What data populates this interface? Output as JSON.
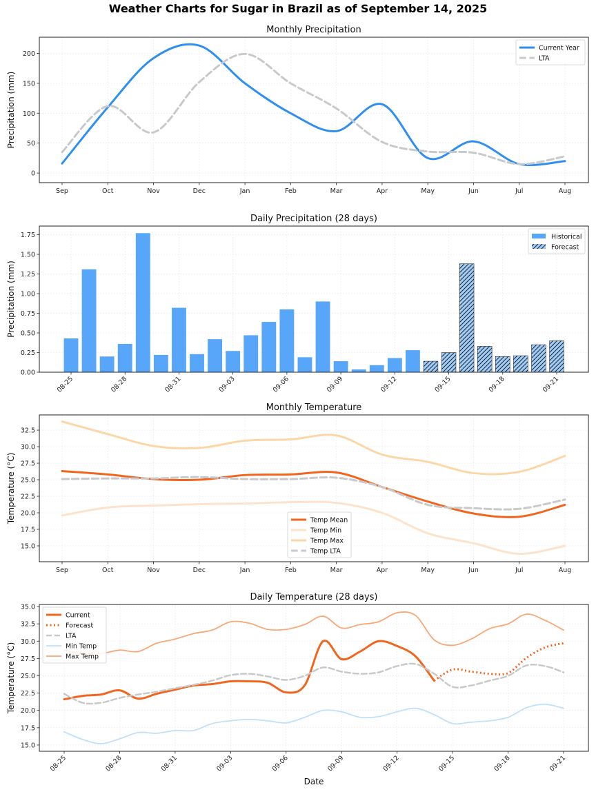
{
  "suptitle": "Weather Charts for Sugar in Brazil as of September 14, 2025",
  "chart_data": [
    {
      "type": "line",
      "title": "Monthly Precipitation",
      "xlabel": "",
      "ylabel": "Precipitation (mm)",
      "categories": [
        "Sep",
        "Oct",
        "Nov",
        "Dec",
        "Jan",
        "Feb",
        "Mar",
        "Apr",
        "May",
        "Jun",
        "Jul",
        "Aug"
      ],
      "yticks": [
        0,
        50,
        100,
        150,
        200
      ],
      "ylim": [
        -16,
        227
      ],
      "grid": true,
      "legend_position": "top-right",
      "series": [
        {
          "name": "Current Year",
          "color": "#2f8ff0",
          "style": "solid",
          "values": [
            16,
            110,
            192,
            213,
            150,
            100,
            70,
            115,
            25,
            53,
            15,
            20
          ]
        },
        {
          "name": "LTA",
          "color": "#c7c9cb",
          "style": "dashed",
          "values": [
            35,
            112,
            68,
            152,
            199,
            150,
            108,
            52,
            36,
            34,
            15,
            28
          ]
        }
      ]
    },
    {
      "type": "bar",
      "title": "Daily Precipitation (28 days)",
      "xlabel": "",
      "ylabel": "Precipitation (mm)",
      "categories": [
        "08-25",
        "08-26",
        "08-27",
        "08-28",
        "08-29",
        "08-30",
        "08-31",
        "09-01",
        "09-02",
        "09-03",
        "09-04",
        "09-05",
        "09-06",
        "09-07",
        "09-08",
        "09-09",
        "09-10",
        "09-11",
        "09-12",
        "09-13",
        "09-14",
        "09-15",
        "09-16",
        "09-17",
        "09-18",
        "09-19",
        "09-20",
        "09-21"
      ],
      "tick_labels": [
        "08-25",
        "08-28",
        "08-31",
        "09-03",
        "09-06",
        "09-09",
        "09-12",
        "09-15",
        "09-18",
        "09-21"
      ],
      "yticks": [
        0,
        0.25,
        0.5,
        0.75,
        1.0,
        1.25,
        1.5,
        1.75
      ],
      "ytick_labels": [
        "0.00",
        "0.25",
        "0.50",
        "0.75",
        "1.00",
        "1.25",
        "1.50",
        "1.75"
      ],
      "ylim": [
        0,
        1.86
      ],
      "grid": true,
      "legend_position": "top-right",
      "series": [
        {
          "name": "Historical",
          "color": "#58a6fa",
          "hatch": false,
          "values": [
            0.43,
            1.31,
            0.2,
            0.36,
            1.77,
            0.22,
            0.82,
            0.23,
            0.42,
            0.27,
            0.47,
            0.64,
            0.8,
            0.19,
            0.9,
            0.14,
            0.035,
            0.09,
            0.18,
            0.28,
            null,
            null,
            null,
            null,
            null,
            null,
            null,
            null
          ]
        },
        {
          "name": "Forecast",
          "color": "#9ecbf8",
          "hatch": true,
          "values": [
            null,
            null,
            null,
            null,
            null,
            null,
            null,
            null,
            null,
            null,
            null,
            null,
            null,
            null,
            null,
            null,
            null,
            null,
            null,
            null,
            0.14,
            0.25,
            1.38,
            0.33,
            0.2,
            0.21,
            0.35,
            0.4
          ]
        }
      ]
    },
    {
      "type": "line",
      "title": "Monthly Temperature",
      "xlabel": "",
      "ylabel": "Temperature (°C)",
      "categories": [
        "Sep",
        "Oct",
        "Nov",
        "Dec",
        "Jan",
        "Feb",
        "Mar",
        "Apr",
        "May",
        "Jun",
        "Jul",
        "Aug"
      ],
      "yticks": [
        15.0,
        17.5,
        20.0,
        22.5,
        25.0,
        27.5,
        30.0,
        32.5
      ],
      "ytick_labels": [
        "15.0",
        "17.5",
        "20.0",
        "22.5",
        "25.0",
        "27.5",
        "30.0",
        "32.5"
      ],
      "ylim": [
        12.6,
        34.8
      ],
      "grid": true,
      "legend_position": "lower-center",
      "series": [
        {
          "name": "Temp Mean",
          "color": "#f2651e",
          "style": "solid",
          "width": 3,
          "values": [
            26.3,
            25.8,
            25.1,
            25.0,
            25.7,
            25.8,
            26.1,
            23.9,
            21.7,
            19.9,
            19.4,
            21.2
          ]
        },
        {
          "name": "Temp Min",
          "color": "#fde2cc",
          "style": "solid",
          "width": 3,
          "values": [
            19.6,
            20.8,
            21.1,
            21.3,
            21.4,
            21.6,
            21.5,
            20.0,
            16.9,
            15.4,
            13.8,
            15.0
          ]
        },
        {
          "name": "Temp Max",
          "color": "#fbd7a8",
          "style": "solid",
          "width": 3,
          "values": [
            33.8,
            31.9,
            30.1,
            29.8,
            30.9,
            31.1,
            31.7,
            28.8,
            27.7,
            26.0,
            26.2,
            28.6
          ]
        },
        {
          "name": "Temp LTA",
          "color": "#c7c9cb",
          "style": "dashed",
          "width": 3,
          "values": [
            25.1,
            25.2,
            25.2,
            25.4,
            25.1,
            25.1,
            25.3,
            23.9,
            21.2,
            20.7,
            20.6,
            22.0
          ]
        }
      ]
    },
    {
      "type": "line",
      "title": "Daily Temperature (28 days)",
      "xlabel": "Date",
      "ylabel": "Temperature (°C)",
      "categories": [
        "08-25",
        "08-26",
        "08-27",
        "08-28",
        "08-29",
        "08-30",
        "08-31",
        "09-01",
        "09-02",
        "09-03",
        "09-04",
        "09-05",
        "09-06",
        "09-07",
        "09-08",
        "09-09",
        "09-10",
        "09-11",
        "09-12",
        "09-13",
        "09-14",
        "09-15",
        "09-16",
        "09-17",
        "09-18",
        "09-19",
        "09-20",
        "09-21"
      ],
      "tick_labels": [
        "08-25",
        "08-28",
        "08-31",
        "09-03",
        "09-06",
        "09-09",
        "09-12",
        "09-15",
        "09-18",
        "09-21"
      ],
      "yticks": [
        15.0,
        17.5,
        20.0,
        22.5,
        25.0,
        27.5,
        30.0,
        32.5,
        35.0
      ],
      "ytick_labels": [
        "15.0",
        "17.5",
        "20.0",
        "22.5",
        "25.0",
        "27.5",
        "30.0",
        "32.5",
        "35.0"
      ],
      "ylim": [
        14.1,
        35.3
      ],
      "grid": true,
      "legend_position": "top-left",
      "series": [
        {
          "name": "Current",
          "color": "#f2651e",
          "style": "solid",
          "width": 3,
          "values": [
            21.6,
            22.1,
            22.3,
            22.9,
            21.7,
            22.4,
            23.0,
            23.6,
            23.8,
            24.2,
            24.2,
            24.0,
            22.6,
            23.6,
            30.0,
            27.4,
            28.5,
            30.0,
            29.3,
            27.8,
            24.3,
            null,
            null,
            null,
            null,
            null,
            null,
            null
          ]
        },
        {
          "name": "Forecast",
          "color": "#f2651e",
          "style": "dotted",
          "width": 3,
          "values": [
            null,
            null,
            null,
            null,
            null,
            null,
            null,
            null,
            null,
            null,
            null,
            null,
            null,
            null,
            null,
            null,
            null,
            null,
            null,
            null,
            24.3,
            25.9,
            25.6,
            25.3,
            25.4,
            27.6,
            29.1,
            29.7
          ]
        },
        {
          "name": "LTA",
          "color": "#c7c9cb",
          "style": "dashed",
          "width": 2.5,
          "values": [
            22.4,
            21.1,
            21.1,
            21.8,
            22.3,
            22.7,
            23.2,
            23.7,
            24.3,
            25.1,
            25.3,
            24.9,
            24.4,
            25.0,
            26.2,
            25.6,
            25.3,
            25.5,
            26.4,
            26.7,
            25.3,
            23.4,
            23.6,
            24.3,
            25.0,
            26.5,
            26.4,
            25.5
          ]
        },
        {
          "name": "Min Temp",
          "color": "#bfe0fb",
          "style": "solid",
          "width": 1.8,
          "values": [
            16.9,
            15.8,
            15.2,
            15.9,
            16.8,
            16.7,
            17.1,
            17.1,
            18.1,
            18.5,
            18.7,
            18.5,
            18.2,
            19.0,
            20.0,
            19.8,
            19.0,
            19.1,
            19.8,
            20.3,
            19.4,
            18.1,
            18.3,
            18.5,
            19.0,
            20.4,
            20.9,
            20.3
          ]
        },
        {
          "name": "Max Temp",
          "color": "#f9a775",
          "style": "solid",
          "width": 1.8,
          "values": [
            28.7,
            28.2,
            28.2,
            28.7,
            28.5,
            29.7,
            30.3,
            31.1,
            31.6,
            32.8,
            32.6,
            31.7,
            31.7,
            32.4,
            33.6,
            31.9,
            32.4,
            32.8,
            34.1,
            33.7,
            30.2,
            29.4,
            30.3,
            31.8,
            32.5,
            33.9,
            33.0,
            31.6
          ]
        }
      ]
    }
  ]
}
